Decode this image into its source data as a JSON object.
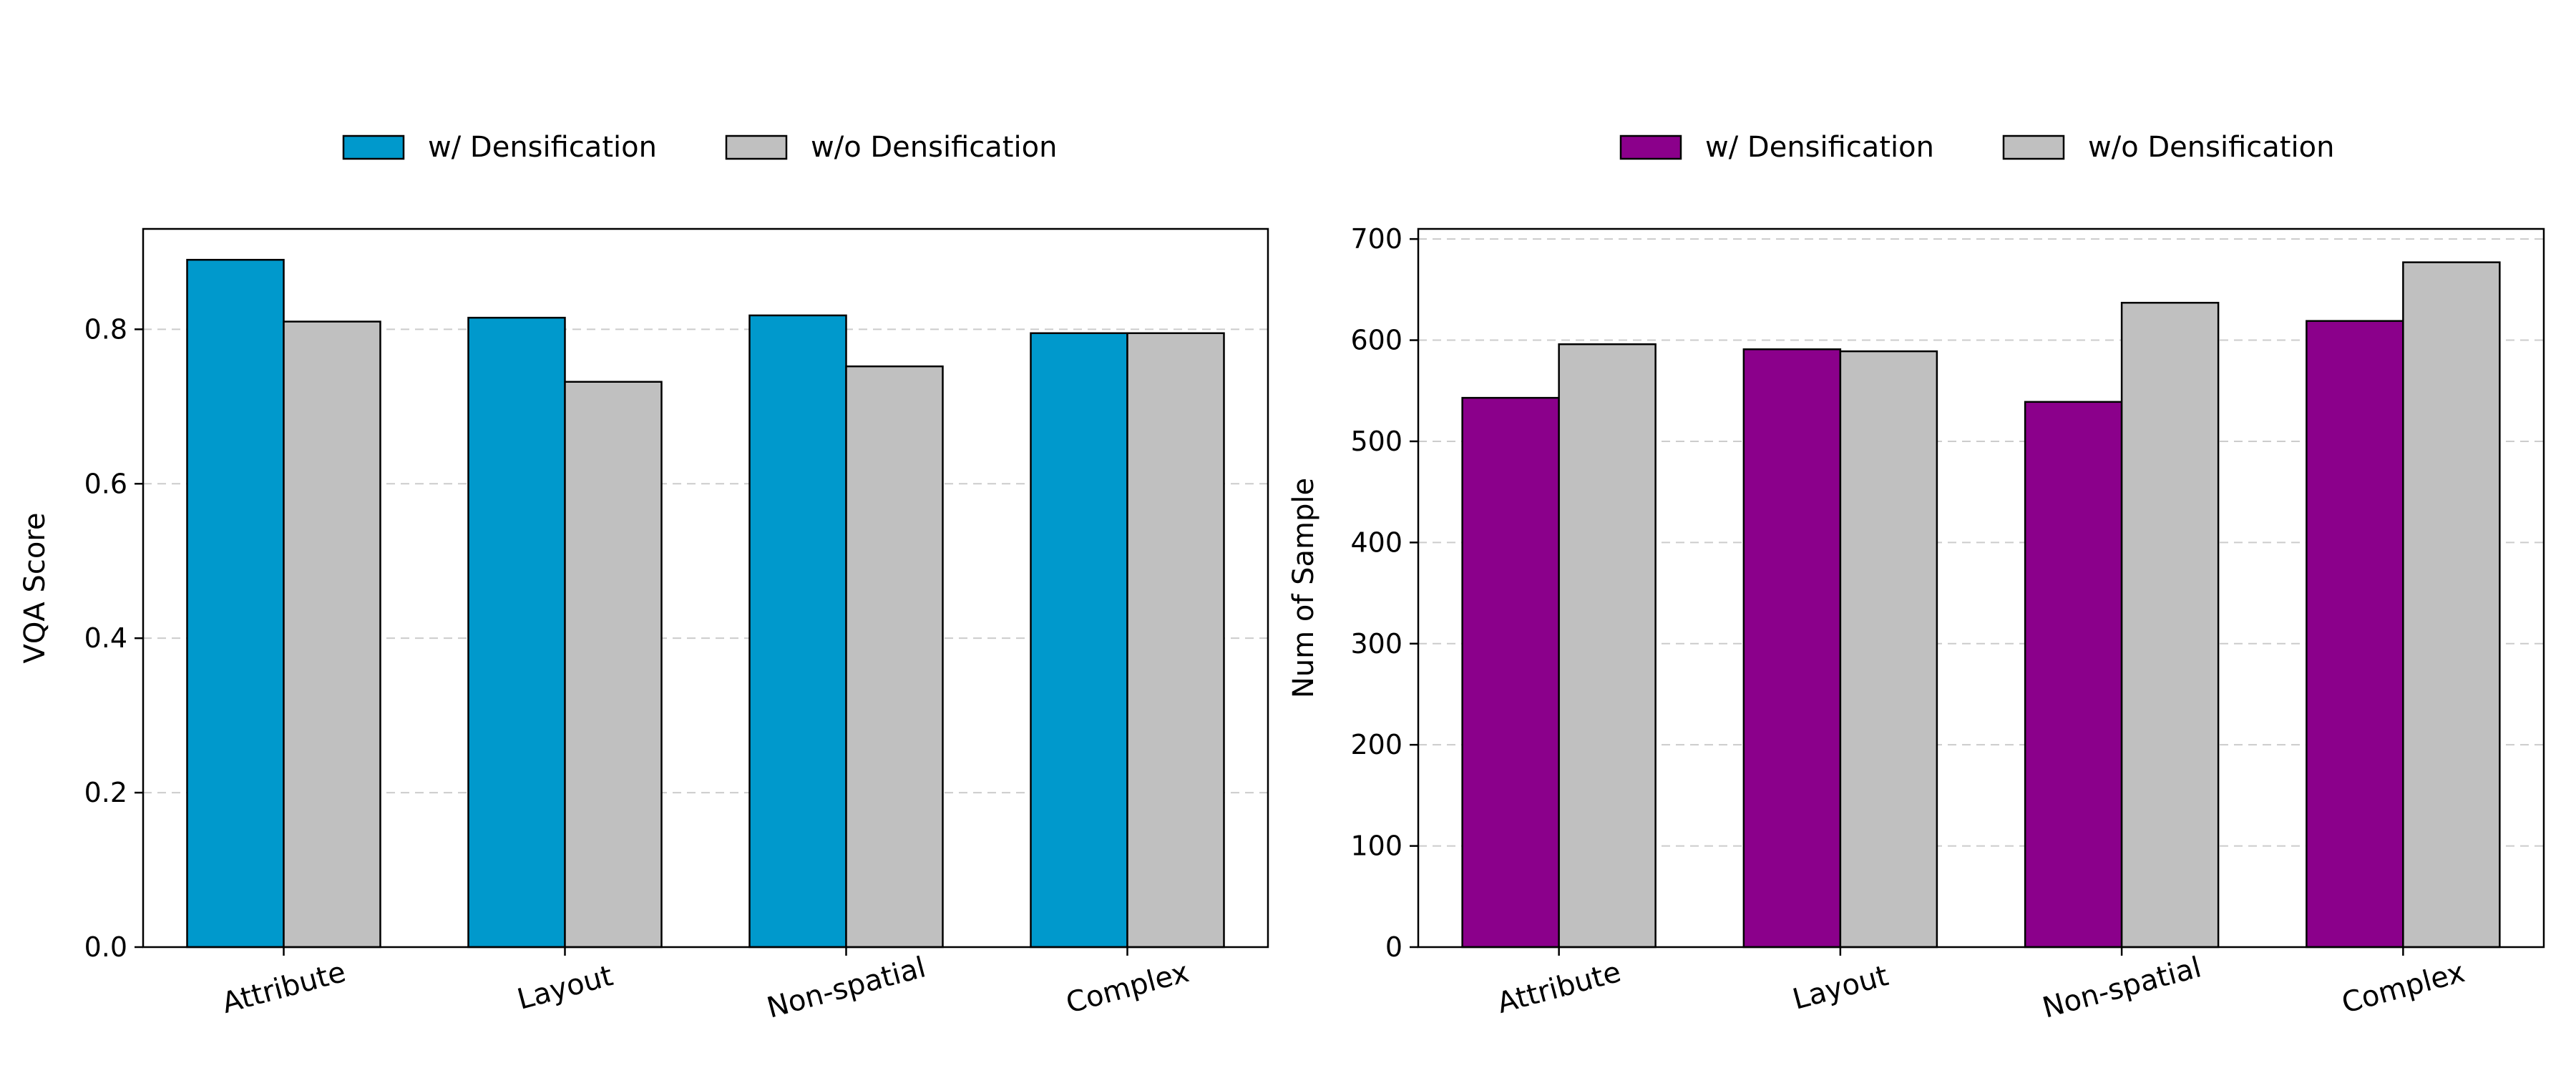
{
  "chart_data": [
    {
      "type": "bar",
      "title": "",
      "xlabel": "",
      "ylabel": "VQA Score",
      "ylim": [
        0,
        0.93
      ],
      "yticks": [
        "0.0",
        "0.2",
        "0.4",
        "0.6",
        "0.8"
      ],
      "ytick_values": [
        0,
        0.2,
        0.4,
        0.6,
        0.8
      ],
      "grid": true,
      "legend_position": "top-center",
      "categories": [
        "Attribute",
        "Layout",
        "Non-spatial",
        "Complex"
      ],
      "series": [
        {
          "name": "w/ Densification",
          "color": "#0099cc",
          "values": [
            0.89,
            0.815,
            0.818,
            0.795
          ]
        },
        {
          "name": "w/o Densification",
          "color": "#c0c0c0",
          "values": [
            0.81,
            0.732,
            0.752,
            0.795
          ]
        }
      ]
    },
    {
      "type": "bar",
      "title": "",
      "xlabel": "",
      "ylabel": "Num of Sample",
      "ylim": [
        0,
        710
      ],
      "yticks": [
        "0",
        "100",
        "200",
        "300",
        "400",
        "500",
        "600",
        "700"
      ],
      "ytick_values": [
        0,
        100,
        200,
        300,
        400,
        500,
        600,
        700
      ],
      "grid": true,
      "legend_position": "top-center",
      "categories": [
        "Attribute",
        "Layout",
        "Non-spatial",
        "Complex"
      ],
      "series": [
        {
          "name": "w/ Densification",
          "color": "#8b008b",
          "values": [
            543,
            591,
            539,
            619
          ]
        },
        {
          "name": "w/o Densification",
          "color": "#c0c0c0",
          "values": [
            596,
            589,
            637,
            677
          ]
        }
      ]
    }
  ]
}
